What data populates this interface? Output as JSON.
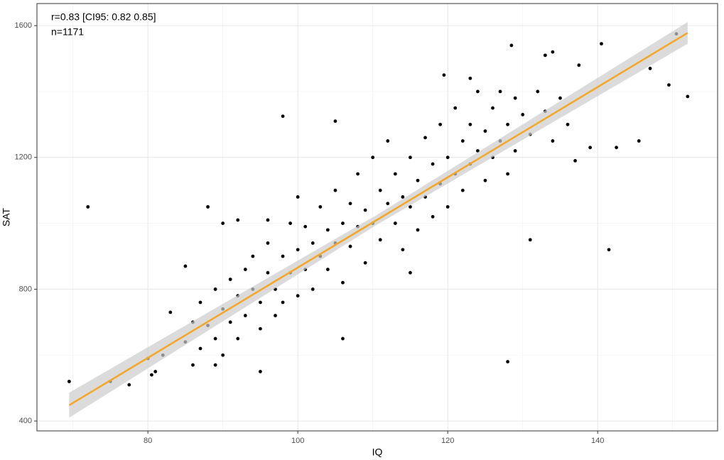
{
  "chart_data": {
    "type": "scatter",
    "xlabel": "IQ",
    "ylabel": "SAT",
    "annotations": [
      "r=0.83 [CI95: 0.82 0.85]",
      "n=1171"
    ],
    "xlim": [
      65.2,
      156
    ],
    "ylim": [
      370,
      1667
    ],
    "xticks": [
      80,
      100,
      120,
      140
    ],
    "yticks": [
      400,
      800,
      1200,
      1600
    ],
    "xminor": [
      70,
      90,
      110,
      130,
      150
    ],
    "yminor": [
      600,
      1000,
      1400
    ],
    "grid": true,
    "color": "#000000",
    "x": [
      69.5,
      72,
      75,
      77.5,
      80,
      80.5,
      81,
      82,
      88,
      98,
      105,
      128,
      141.5,
      131,
      140.5,
      150.5,
      152,
      149.5,
      147,
      145.5,
      142.5,
      139,
      137.5,
      133,
      134,
      128.5,
      123,
      119.5,
      106,
      115,
      95,
      89,
      86,
      83,
      85,
      90,
      92,
      96,
      85,
      86,
      87,
      87,
      88,
      89,
      89,
      90,
      90,
      91,
      91,
      92,
      92,
      93,
      93,
      94,
      94,
      95,
      95,
      96,
      96,
      97,
      97,
      98,
      98,
      99,
      99,
      100,
      100,
      100,
      101,
      101,
      102,
      102,
      103,
      103,
      104,
      104,
      105,
      105,
      106,
      106,
      107,
      107,
      108,
      108,
      109,
      109,
      110,
      110,
      111,
      111,
      112,
      112,
      113,
      113,
      114,
      114,
      115,
      115,
      116,
      116,
      117,
      117,
      118,
      118,
      119,
      119,
      120,
      120,
      121,
      121,
      122,
      122,
      123,
      123,
      124,
      124,
      125,
      125,
      126,
      126,
      127,
      127,
      128,
      128,
      129,
      129,
      130,
      131,
      132,
      133,
      134,
      135,
      136,
      137
    ],
    "y": [
      520,
      1050,
      520,
      510,
      590,
      540,
      550,
      600,
      1050,
      1325,
      1310,
      580,
      920,
      950,
      1545,
      1575,
      1385,
      1420,
      1470,
      1250,
      1230,
      1230,
      1480,
      1510,
      1520,
      1540,
      1440,
      1450,
      650,
      850,
      550,
      570,
      570,
      730,
      870,
      1000,
      1010,
      1010,
      640,
      700,
      760,
      620,
      690,
      800,
      650,
      740,
      600,
      830,
      700,
      780,
      650,
      860,
      720,
      800,
      900,
      760,
      680,
      850,
      940,
      800,
      720,
      900,
      760,
      1000,
      850,
      920,
      780,
      1080,
      860,
      990,
      940,
      800,
      1050,
      900,
      980,
      860,
      1100,
      940,
      1000,
      820,
      1060,
      930,
      1150,
      990,
      1040,
      880,
      1200,
      1000,
      1100,
      950,
      1060,
      1250,
      1000,
      1150,
      1080,
      920,
      1200,
      1050,
      1130,
      980,
      1260,
      1080,
      1180,
      1020,
      1300,
      1120,
      1200,
      1050,
      1350,
      1150,
      1250,
      1100,
      1300,
      1180,
      1400,
      1220,
      1280,
      1130,
      1350,
      1200,
      1400,
      1250,
      1300,
      1150,
      1380,
      1220,
      1330,
      1270,
      1400,
      1340,
      1250,
      1380,
      1300,
      1190
    ],
    "fit": {
      "x": [
        69.5,
        152
      ],
      "y": [
        448,
        1578
      ],
      "color": "#f5a623"
    },
    "band": {
      "x": [
        69.5,
        110.5,
        152
      ],
      "lower": [
        410,
        995,
        1545
      ],
      "upper": [
        486,
        1025,
        1611
      ],
      "color": "#cccccc"
    }
  }
}
